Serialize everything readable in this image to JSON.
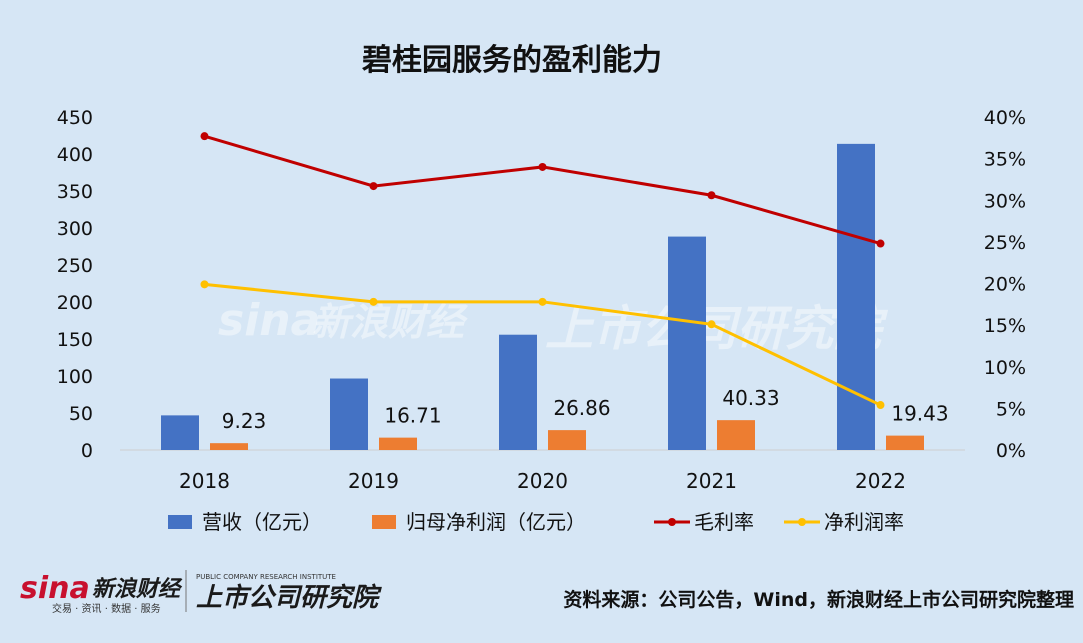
{
  "chart_data": {
    "type": "bar",
    "title": "碧桂园服务的盈利能力",
    "categories": [
      "2018",
      "2019",
      "2020",
      "2021",
      "2022"
    ],
    "y_left": {
      "ylim": [
        0,
        450
      ],
      "ticks": [
        "450",
        "400",
        "350",
        "300",
        "250",
        "200",
        "150",
        "100",
        "50",
        "0"
      ],
      "tick_values": [
        450,
        400,
        350,
        300,
        250,
        200,
        150,
        100,
        50,
        0
      ]
    },
    "y_right": {
      "ylim": [
        0,
        0.4
      ],
      "ticks": [
        "40%",
        "35%",
        "30%",
        "25%",
        "20%",
        "15%",
        "10%",
        "5%",
        "0%"
      ],
      "tick_values": [
        0.4,
        0.35,
        0.3,
        0.25,
        0.2,
        0.15,
        0.1,
        0.05,
        0
      ]
    },
    "series": [
      {
        "name": "营收（亿元）",
        "kind": "bar",
        "axis": "left",
        "color": "#4472c4",
        "values": [
          46.8,
          96.6,
          155.8,
          288.4,
          413.7
        ]
      },
      {
        "name": "归母净利润（亿元）",
        "kind": "bar",
        "axis": "left",
        "color": "#ed7d31",
        "values": [
          9.23,
          16.71,
          26.86,
          40.33,
          19.43
        ],
        "labels": [
          "9.23",
          "16.71",
          "26.86",
          "40.33",
          "19.43"
        ]
      },
      {
        "name": "毛利率",
        "kind": "line",
        "axis": "right",
        "color": "#c00000",
        "values": [
          0.377,
          0.317,
          0.34,
          0.306,
          0.248
        ]
      },
      {
        "name": "净利润率",
        "kind": "line",
        "axis": "right",
        "color": "#ffc000",
        "values": [
          0.199,
          0.178,
          0.178,
          0.151,
          0.054
        ]
      }
    ],
    "legend_position": "bottom",
    "grid": false
  },
  "source": {
    "text": "资料来源：公司公告，Wind，新浪财经上市公司研究院整理"
  },
  "logos": {
    "sina": "sina",
    "sina_cn": "新浪财经",
    "sina_tagline": "交易 · 资讯 · 数据 · 服务",
    "institute": "上市公司研究院",
    "institute_en": "PUBLIC COMPANY RESEARCH INSTITUTE"
  },
  "colors": {
    "background": "#d6e6f5",
    "revenue": "#4472c4",
    "profit": "#ed7d31",
    "gross_margin": "#c00000",
    "net_margin": "#ffc000"
  }
}
